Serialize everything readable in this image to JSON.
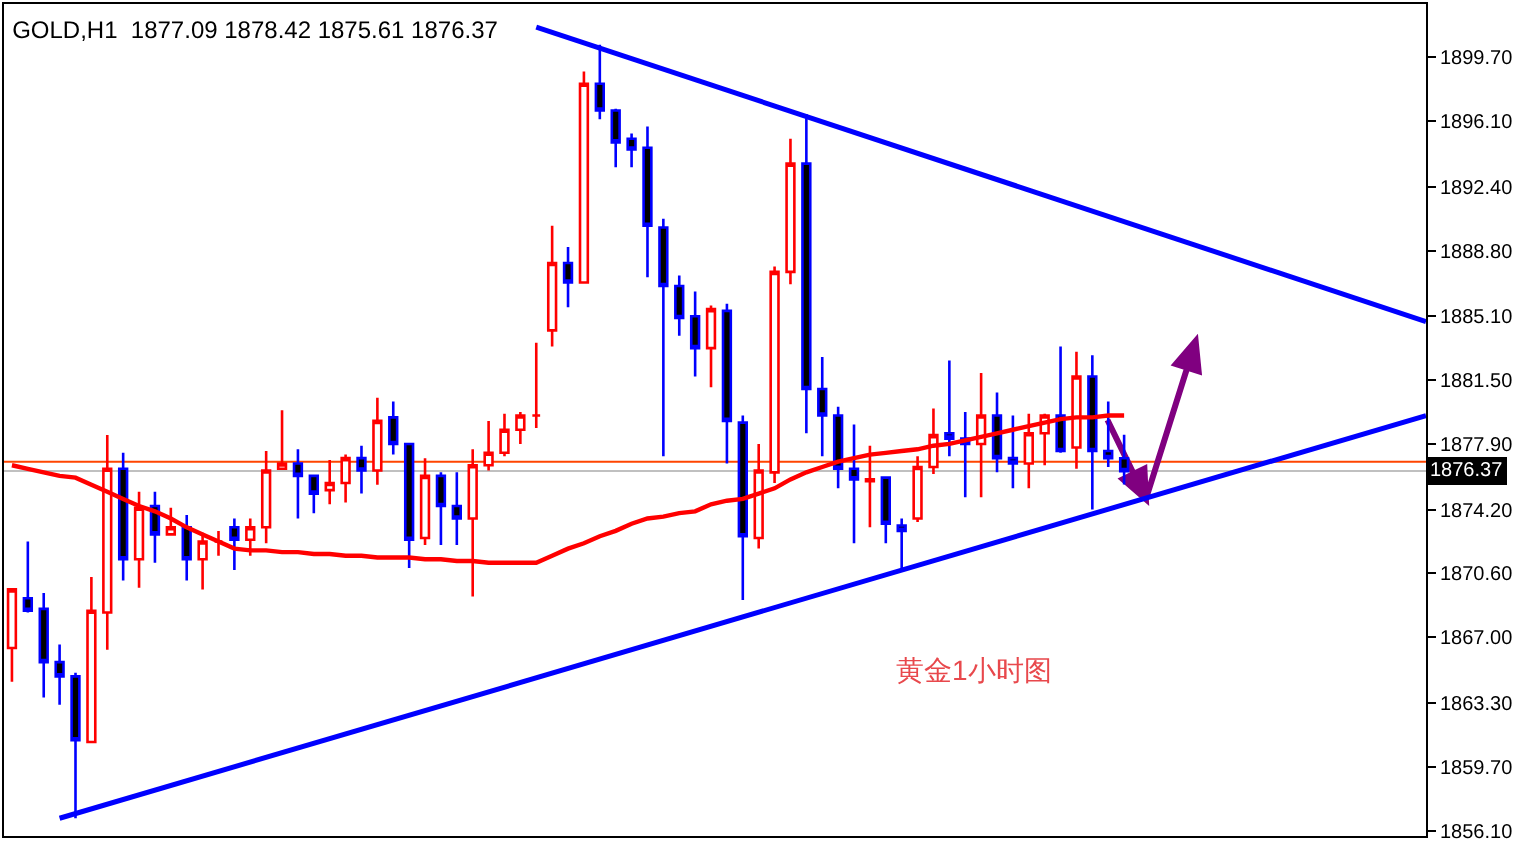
{
  "chart_data": {
    "type": "candlestick",
    "title": "GOLD,H1  1877.09 1878.42 1875.61 1876.37",
    "categories": [
      null,
      null,
      null,
      null,
      null,
      null,
      null,
      null,
      null,
      null,
      null,
      null,
      null,
      null,
      null,
      null,
      null,
      null,
      null,
      null,
      null,
      null,
      null,
      null,
      null,
      null,
      null,
      null,
      null,
      null,
      null,
      null,
      null,
      null,
      null,
      null,
      null,
      null,
      null,
      null,
      null,
      null,
      null,
      null,
      null,
      null,
      null,
      null,
      null,
      null,
      null,
      null,
      null,
      null,
      null,
      null,
      null,
      null,
      null,
      null,
      null,
      null,
      null,
      null,
      null,
      null,
      null,
      null,
      null,
      null,
      null,
      null,
      null,
      null,
      null,
      null,
      null,
      null,
      null,
      null,
      null,
      null,
      null,
      null,
      null,
      null,
      null,
      null,
      null,
      null
    ],
    "ohlc": [
      [
        1866.4,
        1869.7,
        1864.5,
        1869.7
      ],
      [
        1869.2,
        1872.4,
        1868.4,
        1868.5
      ],
      [
        1868.6,
        1869.5,
        1863.6,
        1865.6
      ],
      [
        1865.6,
        1866.6,
        1863.2,
        1864.8
      ],
      [
        1864.8,
        1865.0,
        1856.8,
        1861.2
      ],
      [
        1861.1,
        1870.4,
        1861.1,
        1868.5
      ],
      [
        1868.4,
        1878.4,
        1866.3,
        1876.5
      ],
      [
        1876.5,
        1877.4,
        1870.2,
        1871.4
      ],
      [
        1871.4,
        1875.2,
        1869.8,
        1874.3
      ],
      [
        1874.4,
        1875.2,
        1871.2,
        1872.8
      ],
      [
        1872.8,
        1874.3,
        1872.8,
        1873.2
      ],
      [
        1873.2,
        1873.9,
        1870.2,
        1871.4
      ],
      [
        1871.4,
        1872.9,
        1869.7,
        1872.4
      ],
      [
        1872.4,
        1873.0,
        1871.6,
        1872.4
      ],
      [
        1873.2,
        1873.7,
        1870.8,
        1872.5
      ],
      [
        1872.5,
        1873.7,
        1871.6,
        1873.2
      ],
      [
        1873.2,
        1877.5,
        1872.3,
        1876.4
      ],
      [
        1876.5,
        1879.8,
        1876.5,
        1876.8
      ],
      [
        1876.8,
        1877.6,
        1873.7,
        1876.1
      ],
      [
        1876.1,
        1876.1,
        1874.0,
        1875.1
      ],
      [
        1875.3,
        1877.0,
        1874.5,
        1875.7
      ],
      [
        1875.7,
        1877.3,
        1874.6,
        1877.1
      ],
      [
        1877.1,
        1877.8,
        1875.1,
        1876.4
      ],
      [
        1876.4,
        1880.5,
        1875.6,
        1879.2
      ],
      [
        1879.4,
        1880.3,
        1877.3,
        1877.9
      ],
      [
        1877.9,
        1877.9,
        1870.9,
        1872.5
      ],
      [
        1872.6,
        1877.1,
        1872.2,
        1876.1
      ],
      [
        1876.1,
        1876.3,
        1872.2,
        1874.4
      ],
      [
        1874.4,
        1876.3,
        1872.2,
        1873.7
      ],
      [
        1873.7,
        1877.6,
        1869.3,
        1876.7
      ],
      [
        1876.7,
        1879.2,
        1876.4,
        1877.4
      ],
      [
        1877.4,
        1879.6,
        1877.2,
        1878.7
      ],
      [
        1878.7,
        1879.7,
        1877.9,
        1879.5
      ],
      [
        1879.5,
        1883.6,
        1878.8,
        1879.5
      ],
      [
        1884.3,
        1890.2,
        1883.4,
        1888.1
      ],
      [
        1888.1,
        1889.0,
        1885.6,
        1887.0
      ],
      [
        1887.0,
        1898.9,
        1887.0,
        1898.2
      ],
      [
        1898.2,
        1900.4,
        1896.2,
        1896.7
      ],
      [
        1896.7,
        1896.8,
        1893.5,
        1894.9
      ],
      [
        1895.1,
        1895.4,
        1893.5,
        1894.5
      ],
      [
        1894.6,
        1895.8,
        1887.3,
        1890.2
      ],
      [
        1890.1,
        1890.6,
        1877.2,
        1886.8
      ],
      [
        1886.8,
        1887.4,
        1884.0,
        1885.0
      ],
      [
        1885.1,
        1886.5,
        1881.7,
        1883.3
      ],
      [
        1883.3,
        1885.7,
        1881.1,
        1885.5
      ],
      [
        1885.4,
        1885.8,
        1876.8,
        1879.2
      ],
      [
        1879.1,
        1879.5,
        1869.1,
        1872.7
      ],
      [
        1872.6,
        1877.9,
        1872.0,
        1876.4
      ],
      [
        1876.3,
        1887.9,
        1875.7,
        1887.6
      ],
      [
        1887.6,
        1895.1,
        1886.9,
        1893.7
      ],
      [
        1893.7,
        1896.5,
        1878.5,
        1881.0
      ],
      [
        1881.0,
        1882.8,
        1877.2,
        1879.5
      ],
      [
        1879.5,
        1880.0,
        1875.4,
        1876.5
      ],
      [
        1876.5,
        1879.0,
        1872.3,
        1875.9
      ],
      [
        1875.8,
        1877.8,
        1873.2,
        1875.9
      ],
      [
        1876.0,
        1876.0,
        1872.3,
        1873.4
      ],
      [
        1873.3,
        1873.7,
        1870.9,
        1873.0
      ],
      [
        1873.7,
        1877.2,
        1873.5,
        1876.6
      ],
      [
        1876.6,
        1879.9,
        1876.2,
        1878.4
      ],
      [
        1878.5,
        1882.6,
        1877.2,
        1878.2
      ],
      [
        1878.2,
        1879.7,
        1874.9,
        1877.9
      ],
      [
        1877.9,
        1881.9,
        1874.9,
        1879.5
      ],
      [
        1879.5,
        1880.8,
        1876.3,
        1877.1
      ],
      [
        1877.1,
        1879.5,
        1875.4,
        1876.8
      ],
      [
        1876.8,
        1879.6,
        1875.4,
        1878.5
      ],
      [
        1878.5,
        1879.6,
        1876.7,
        1879.5
      ],
      [
        1879.5,
        1883.4,
        1877.4,
        1877.5
      ],
      [
        1877.7,
        1883.1,
        1876.5,
        1881.7
      ],
      [
        1881.7,
        1882.9,
        1874.2,
        1877.5
      ],
      [
        1877.5,
        1880.3,
        1876.6,
        1877.1
      ],
      [
        1877.09,
        1878.42,
        1875.61,
        1876.37
      ],
      null,
      null,
      null,
      null,
      null,
      null,
      null,
      null,
      null,
      null,
      null,
      null,
      null,
      null,
      null,
      null,
      null,
      null,
      null
    ],
    "series": [
      {
        "type": "line",
        "color": "#ff0000",
        "values": [
          1876.7,
          1876.5,
          1876.3,
          1876.1,
          1876.0,
          1875.6,
          1875.2,
          1874.8,
          1874.4,
          1874.1,
          1873.7,
          1873.2,
          1872.8,
          1872.4,
          1872.0,
          1871.9,
          1871.9,
          1871.8,
          1871.8,
          1871.7,
          1871.7,
          1871.6,
          1871.6,
          1871.5,
          1871.5,
          1871.5,
          1871.4,
          1871.4,
          1871.3,
          1871.3,
          1871.2,
          1871.2,
          1871.2,
          1871.2,
          1871.6,
          1872.0,
          1872.3,
          1872.7,
          1873.0,
          1873.4,
          1873.7,
          1873.8,
          1874.0,
          1874.1,
          1874.5,
          1874.7,
          1874.8,
          1875.1,
          1875.4,
          1875.9,
          1876.3,
          1876.6,
          1876.9,
          1877.1,
          1877.3,
          1877.4,
          1877.5,
          1877.6,
          1877.8,
          1877.9,
          1878.1,
          1878.3,
          1878.5,
          1878.7,
          1878.9,
          1879.1,
          1879.3,
          1879.4,
          1879.4,
          1879.5,
          1879.5,
          null,
          null,
          null,
          null,
          null,
          null,
          null,
          null,
          null,
          null,
          null,
          null,
          null,
          null,
          null,
          null,
          null,
          null,
          null
        ]
      },
      {
        "type": "line",
        "color": "#0000ff",
        "values": [
          null,
          null,
          null,
          null,
          null,
          null,
          null,
          null,
          null,
          null,
          null,
          null,
          null,
          null,
          null,
          null,
          null,
          null,
          null,
          null,
          null,
          null,
          null,
          null,
          null,
          null,
          null,
          null,
          null,
          null,
          null,
          null,
          null,
          1901.4,
          null,
          null,
          null,
          null,
          null,
          null,
          null,
          null,
          null,
          null,
          null,
          null,
          null,
          null,
          null,
          null,
          null,
          null,
          null,
          null,
          null,
          null,
          null,
          null,
          null,
          null,
          null,
          null,
          null,
          null,
          null,
          null,
          null,
          null,
          null,
          null,
          null,
          null,
          null,
          null,
          null,
          null,
          null,
          null,
          null,
          null,
          null,
          null,
          null,
          null,
          null,
          null,
          null,
          null,
          null,
          1884.8
        ]
      },
      {
        "type": "line",
        "color": "#0000ff",
        "values": [
          null,
          null,
          null,
          1856.8,
          null,
          null,
          null,
          null,
          null,
          null,
          null,
          null,
          null,
          null,
          null,
          null,
          null,
          null,
          null,
          null,
          null,
          null,
          null,
          null,
          null,
          null,
          null,
          null,
          null,
          null,
          null,
          null,
          null,
          null,
          null,
          null,
          null,
          null,
          null,
          null,
          null,
          null,
          null,
          null,
          null,
          null,
          null,
          null,
          null,
          null,
          null,
          null,
          null,
          null,
          null,
          null,
          null,
          null,
          null,
          null,
          null,
          null,
          null,
          null,
          null,
          null,
          null,
          null,
          null,
          null,
          null,
          null,
          null,
          null,
          null,
          null,
          null,
          null,
          null,
          null,
          null,
          null,
          null,
          null,
          null,
          null,
          null,
          null,
          null,
          1879.5
        ]
      }
    ],
    "ref_lines": [
      {
        "axis": "y",
        "value": 1876.9,
        "color": "#ff4500"
      },
      {
        "axis": "y",
        "value": 1876.37,
        "label": "1876.37",
        "color": "#c0c0c0"
      }
    ],
    "annotations": [
      "黄金1小时图"
    ],
    "ylim": [
      1855.8,
      1902.7
    ],
    "yticks": [
      {
        "value": 1899.7,
        "label": "1899.70"
      },
      {
        "value": 1896.1,
        "label": "1896.10"
      },
      {
        "value": 1892.4,
        "label": "1892.40"
      },
      {
        "value": 1888.8,
        "label": "1888.80"
      },
      {
        "value": 1885.1,
        "label": "1885.10"
      },
      {
        "value": 1881.5,
        "label": "1881.50"
      },
      {
        "value": 1877.9,
        "label": "1877.90"
      },
      {
        "value": 1874.2,
        "label": "1874.20"
      },
      {
        "value": 1870.6,
        "label": "1870.60"
      },
      {
        "value": 1867.0,
        "label": "1867.00"
      },
      {
        "value": 1863.3,
        "label": "1863.30"
      },
      {
        "value": 1859.7,
        "label": "1859.70"
      },
      {
        "value": 1856.1,
        "label": "1856.10"
      }
    ],
    "grid": false
  }
}
